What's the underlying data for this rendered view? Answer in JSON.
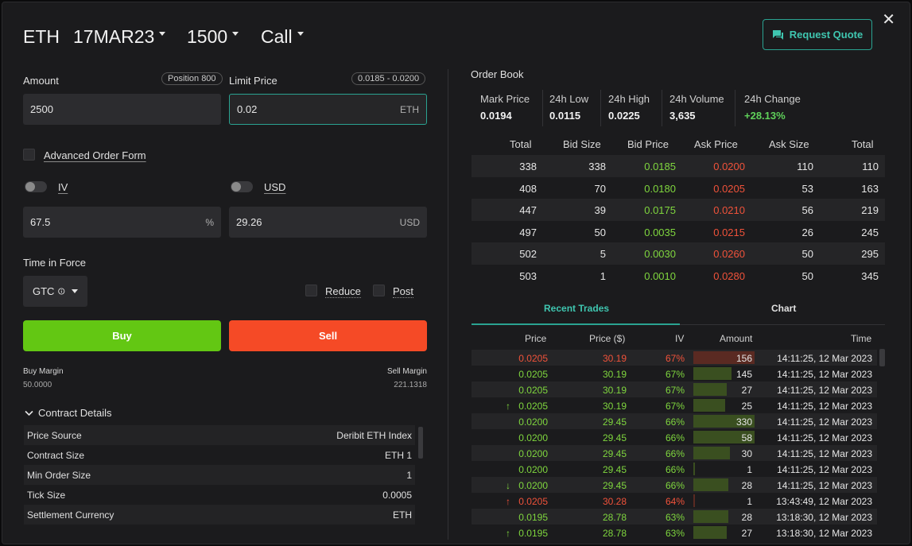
{
  "header": {
    "asset": "ETH",
    "expiry": "17MAR23",
    "strike": "1500",
    "type": "Call",
    "request_quote": "Request Quote",
    "close": "✕"
  },
  "form": {
    "amount_label": "Amount",
    "position_badge": "Position 800",
    "amount_value": "2500",
    "limit_label": "Limit Price",
    "limit_range": "0.0185 - 0.0200",
    "limit_value": "0.02",
    "limit_unit": "ETH",
    "advanced": "Advanced Order Form",
    "iv_label": "IV",
    "usd_label": "USD",
    "iv_value": "67.5",
    "iv_unit": "%",
    "usd_value": "29.26",
    "usd_unit": "USD",
    "tif_label": "Time in Force",
    "tif_value": "GTC",
    "reduce": "Reduce",
    "post": "Post",
    "buy": "Buy",
    "sell": "Sell",
    "buy_margin_label": "Buy Margin",
    "buy_margin": "50.0000",
    "sell_margin_label": "Sell Margin",
    "sell_margin": "221.1318"
  },
  "contract": {
    "title": "Contract Details",
    "rows": [
      {
        "k": "Price Source",
        "v": "Deribit ETH Index"
      },
      {
        "k": "Contract Size",
        "v": "ETH 1"
      },
      {
        "k": "Min Order Size",
        "v": "1"
      },
      {
        "k": "Tick Size",
        "v": "0.0005"
      },
      {
        "k": "Settlement Currency",
        "v": "ETH"
      }
    ]
  },
  "orderbook": {
    "title": "Order Book",
    "stats": [
      {
        "k": "Mark Price",
        "v": "0.0194"
      },
      {
        "k": "24h Low",
        "v": "0.0115"
      },
      {
        "k": "24h High",
        "v": "0.0225"
      },
      {
        "k": "24h Volume",
        "v": "3,635"
      },
      {
        "k": "24h Change",
        "v": "+28.13%"
      }
    ],
    "headers": [
      "Total",
      "Bid Size",
      "Bid Price",
      "Ask Price",
      "Ask Size",
      "Total"
    ],
    "rows": [
      [
        "338",
        "338",
        "0.0185",
        "0.0200",
        "110",
        "110"
      ],
      [
        "408",
        "70",
        "0.0180",
        "0.0205",
        "53",
        "163"
      ],
      [
        "447",
        "39",
        "0.0175",
        "0.0210",
        "56",
        "219"
      ],
      [
        "497",
        "50",
        "0.0035",
        "0.0215",
        "26",
        "245"
      ],
      [
        "502",
        "5",
        "0.0030",
        "0.0260",
        "50",
        "295"
      ],
      [
        "503",
        "1",
        "0.0010",
        "0.0280",
        "50",
        "345"
      ]
    ]
  },
  "trades": {
    "tab_recent": "Recent Trades",
    "tab_chart": "Chart",
    "headers": [
      "Price",
      "Price ($)",
      "IV",
      "Amount",
      "Time"
    ],
    "rows": [
      {
        "arrow": "",
        "price": "0.0205",
        "usd": "30.19",
        "iv": "67%",
        "amount": "156",
        "time": "14:11:25, 12 Mar 2023",
        "side": "sell",
        "fill": 1.0
      },
      {
        "arrow": "",
        "price": "0.0205",
        "usd": "30.19",
        "iv": "67%",
        "amount": "145",
        "time": "14:11:25, 12 Mar 2023",
        "side": "buy",
        "fill": 0.62
      },
      {
        "arrow": "",
        "price": "0.0205",
        "usd": "30.19",
        "iv": "67%",
        "amount": "27",
        "time": "14:11:25, 12 Mar 2023",
        "side": "buy",
        "fill": 0.55
      },
      {
        "arrow": "↑",
        "price": "0.0205",
        "usd": "30.19",
        "iv": "67%",
        "amount": "25",
        "time": "14:11:25, 12 Mar 2023",
        "side": "buy",
        "fill": 0.52
      },
      {
        "arrow": "",
        "price": "0.0200",
        "usd": "29.45",
        "iv": "66%",
        "amount": "330",
        "time": "14:11:25, 12 Mar 2023",
        "side": "buy",
        "fill": 1.0
      },
      {
        "arrow": "",
        "price": "0.0200",
        "usd": "29.45",
        "iv": "66%",
        "amount": "58",
        "time": "14:11:25, 12 Mar 2023",
        "side": "buy",
        "fill": 1.0
      },
      {
        "arrow": "",
        "price": "0.0200",
        "usd": "29.45",
        "iv": "66%",
        "amount": "30",
        "time": "14:11:25, 12 Mar 2023",
        "side": "buy",
        "fill": 0.6
      },
      {
        "arrow": "",
        "price": "0.0200",
        "usd": "29.45",
        "iv": "66%",
        "amount": "1",
        "time": "14:11:25, 12 Mar 2023",
        "side": "buy",
        "fill": 0.03
      },
      {
        "arrow": "↓",
        "price": "0.0200",
        "usd": "29.45",
        "iv": "66%",
        "amount": "28",
        "time": "14:11:25, 12 Mar 2023",
        "side": "buy",
        "fill": 0.57
      },
      {
        "arrow": "↑",
        "price": "0.0205",
        "usd": "30.28",
        "iv": "64%",
        "amount": "1",
        "time": "13:43:49, 12 Mar 2023",
        "side": "sell",
        "fill": 0.03
      },
      {
        "arrow": "",
        "price": "0.0195",
        "usd": "28.78",
        "iv": "63%",
        "amount": "28",
        "time": "13:18:30, 12 Mar 2023",
        "side": "buy",
        "fill": 0.57
      },
      {
        "arrow": "↑",
        "price": "0.0195",
        "usd": "28.78",
        "iv": "63%",
        "amount": "27",
        "time": "13:18:30, 12 Mar 2023",
        "side": "buy",
        "fill": 0.55
      }
    ]
  }
}
